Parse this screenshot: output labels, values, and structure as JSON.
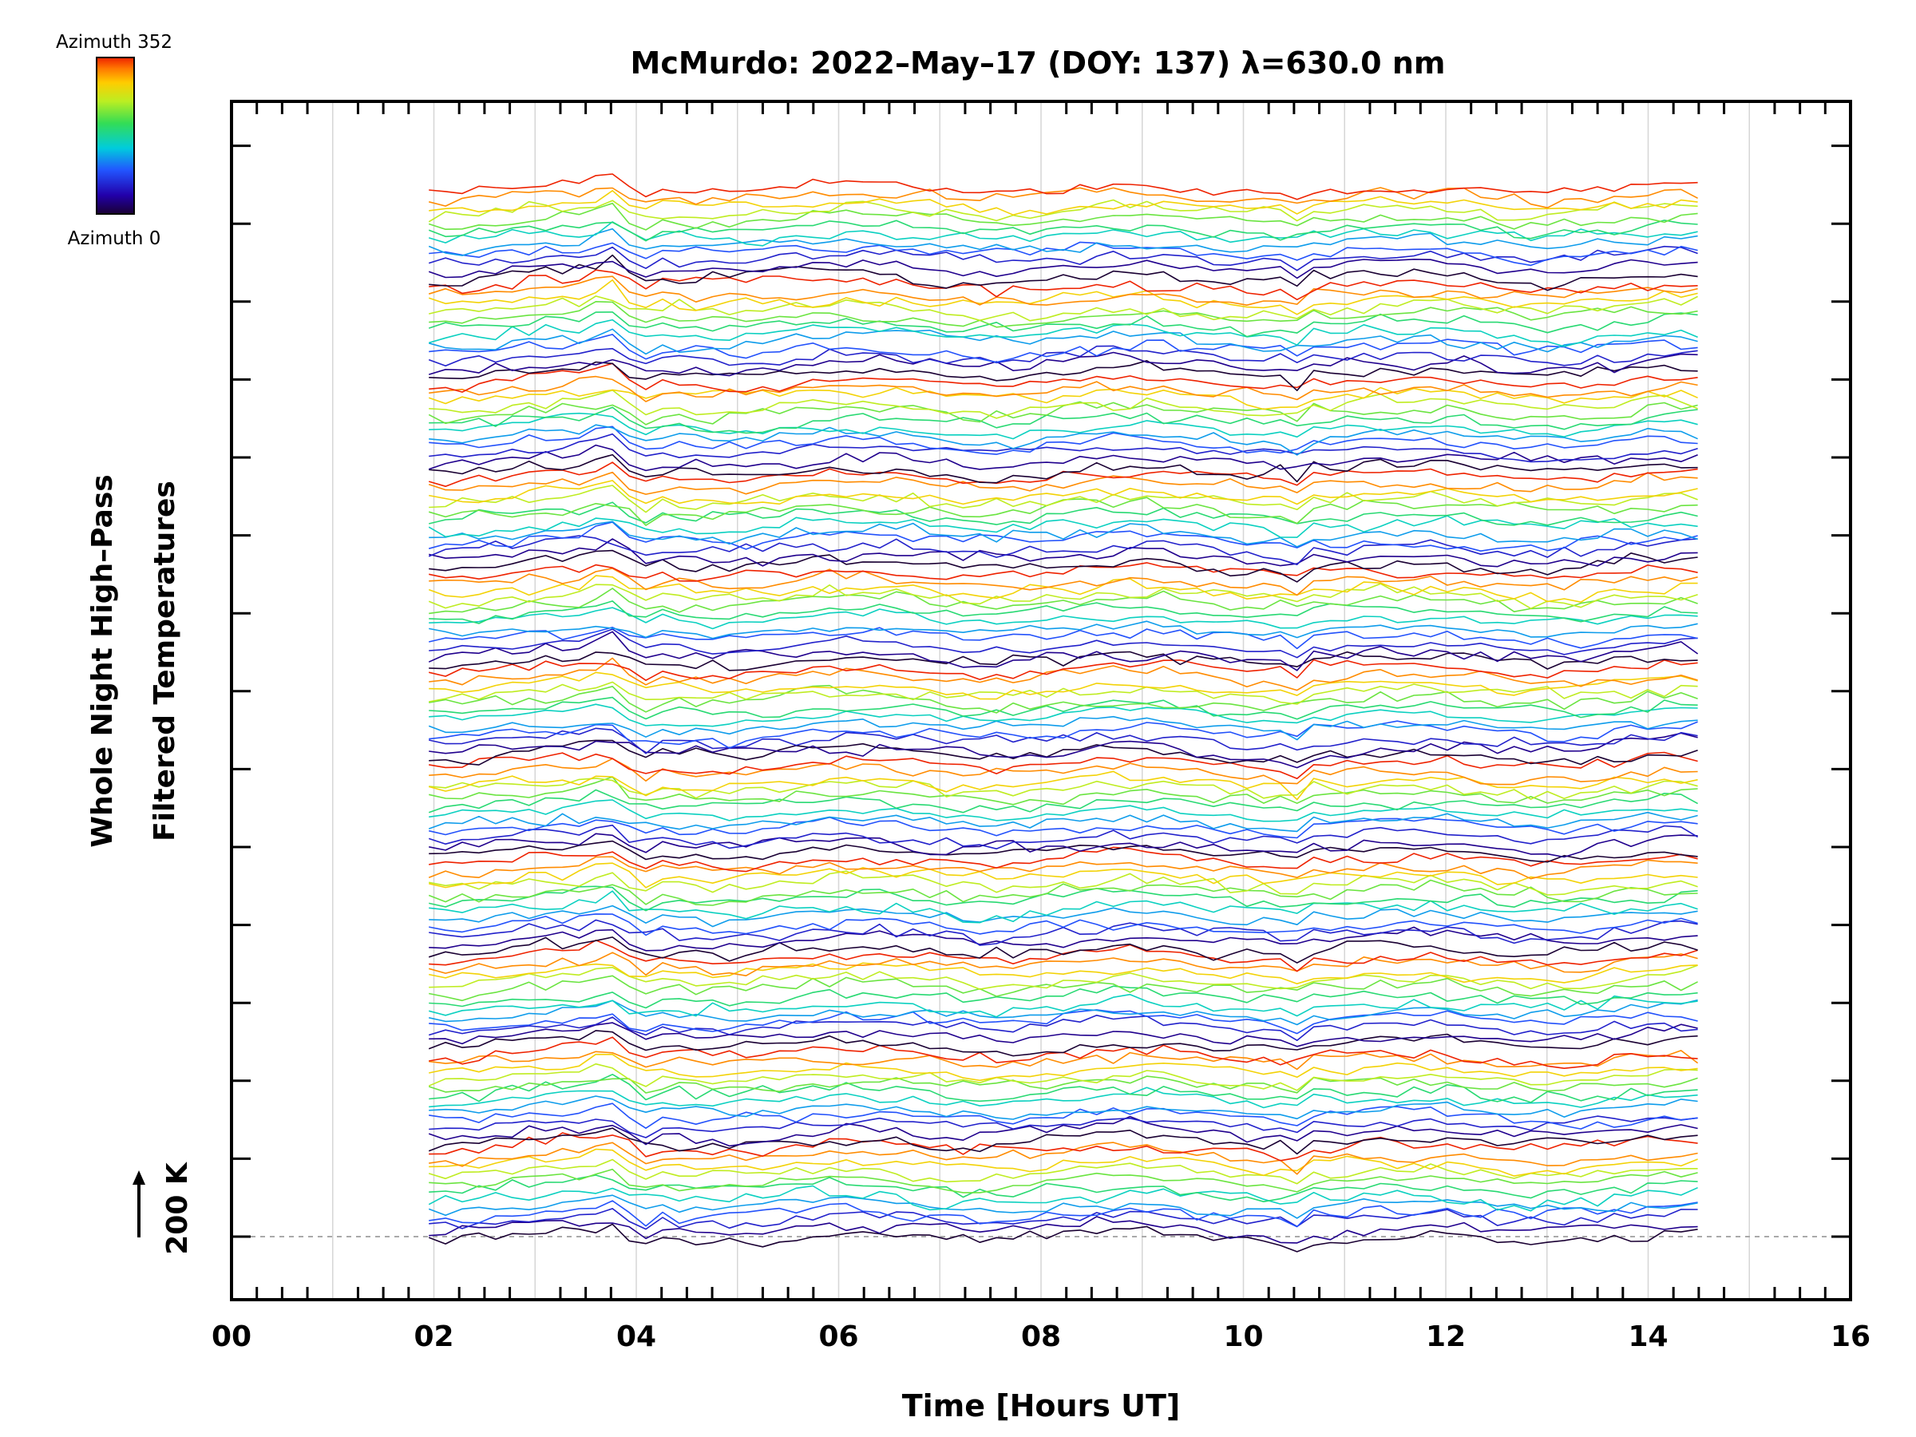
{
  "chart_data": {
    "type": "line",
    "title": "McMurdo: 2022–May–17 (DOY: 137) λ=630.0 nm",
    "xlabel": "Time [Hours UT]",
    "ylabel_line1": "Whole Night High–Pass",
    "ylabel_line2": "Filtered Temperatures",
    "scale_bar_label": "200 K",
    "scale_bar_value_K": 200,
    "legend": {
      "top_label": "Azimuth 352",
      "bottom_label": "Azimuth 0",
      "colormap": "rainbow",
      "placement": "top-left"
    },
    "xlim": [
      0,
      16
    ],
    "x_ticks": [
      0,
      2,
      4,
      6,
      8,
      10,
      12,
      14,
      16
    ],
    "x_tick_labels": [
      "00",
      "02",
      "04",
      "06",
      "08",
      "10",
      "12",
      "14",
      "16"
    ],
    "grid_x": true,
    "time_range": [
      1.95,
      14.55
    ],
    "n_traces": 132,
    "azimuth_range": [
      0,
      352
    ],
    "baseline_dashed": true,
    "series_note": "Stacked high-pass filtered temperature traces, one per zenith/azimuth look direction, colored by azimuth (0–352). Individual values are not labeled in the figure."
  }
}
